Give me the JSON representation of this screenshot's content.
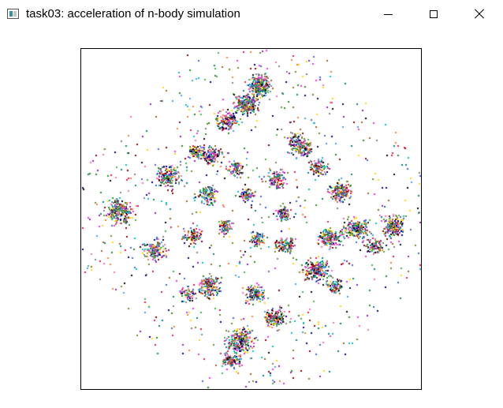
{
  "window": {
    "title": "task03: acceleration of n-body simulation",
    "icon": "app-window-icon",
    "controls": {
      "minimize_icon": "minimize-icon",
      "maximize_icon": "maximize-icon",
      "close_icon": "close-icon"
    }
  },
  "simulation": {
    "background": "#ffffff",
    "border_color": "#000000",
    "particle_colors": [
      "#e6194b",
      "#3cb44b",
      "#4363d8",
      "#f58231",
      "#911eb4",
      "#46a0f0",
      "#f032e6",
      "#6b8e23",
      "#008080",
      "#9a6324",
      "#800000",
      "#000075",
      "#808080",
      "#000000",
      "#ffd700",
      "#00c0c0",
      "#ff69b4",
      "#228b22"
    ]
  }
}
